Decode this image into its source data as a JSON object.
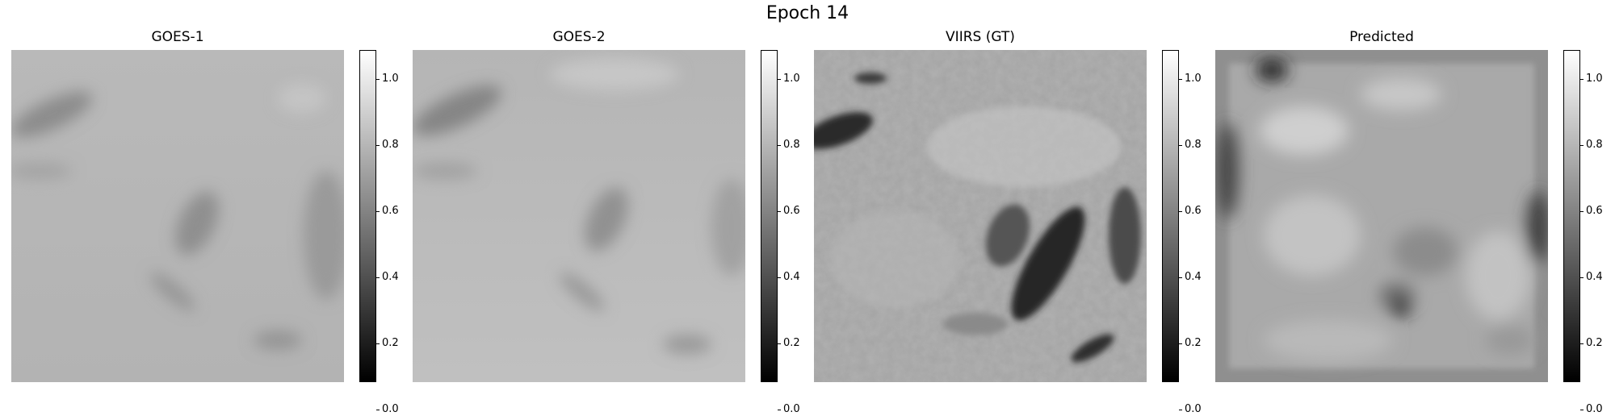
{
  "figure": {
    "suptitle": "Epoch 14"
  },
  "panels": [
    {
      "title": "GOES-1",
      "image": "blurry low-resolution grey satellite scene with faint dark cloud streaks"
    },
    {
      "title": "GOES-2",
      "image": "blurry low-resolution grey satellite scene, slightly lighter than GOES-1"
    },
    {
      "title": "VIIRS (GT)",
      "image": "high-resolution satellite scene with textured terrain and dark cloud bands"
    },
    {
      "title": "Predicted",
      "image": "smooth predicted grey field with blotchy artifacts and a framed border"
    }
  ],
  "colorbar": {
    "colormap": "gray",
    "range": [
      0.0,
      1.0
    ],
    "ticks": [
      "0.0",
      "0.2",
      "0.4",
      "0.6",
      "0.8",
      "1.0"
    ]
  }
}
